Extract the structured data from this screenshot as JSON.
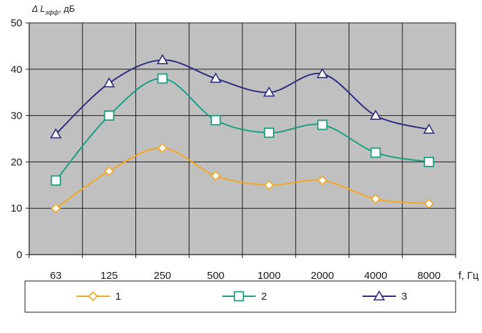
{
  "chart_data": {
    "type": "line",
    "ylabel": {
      "main": "Δ L",
      "sub": "эфф",
      "unit": ", дБ"
    },
    "xlabel": "f, Гц",
    "categories": [
      "63",
      "125",
      "250",
      "500",
      "1000",
      "2000",
      "4000",
      "8000"
    ],
    "ylim": [
      0,
      50
    ],
    "yticks": [
      "0",
      "10",
      "20",
      "30",
      "40",
      "50"
    ],
    "grid": true,
    "plot_background": "#c0c0c0",
    "legend_position": "bottom",
    "series": [
      {
        "name": "1",
        "color": "#f5a623",
        "marker": "diamond",
        "values": [
          10,
          18,
          23,
          17,
          15,
          16,
          12,
          11
        ]
      },
      {
        "name": "2",
        "color": "#1a9e82",
        "marker": "square",
        "values": [
          16,
          30,
          38,
          29,
          26.3,
          28,
          22,
          20
        ]
      },
      {
        "name": "3",
        "color": "#2b2b7f",
        "marker": "triangle",
        "values": [
          26,
          37,
          42,
          38,
          35,
          39,
          30,
          27
        ]
      }
    ]
  }
}
